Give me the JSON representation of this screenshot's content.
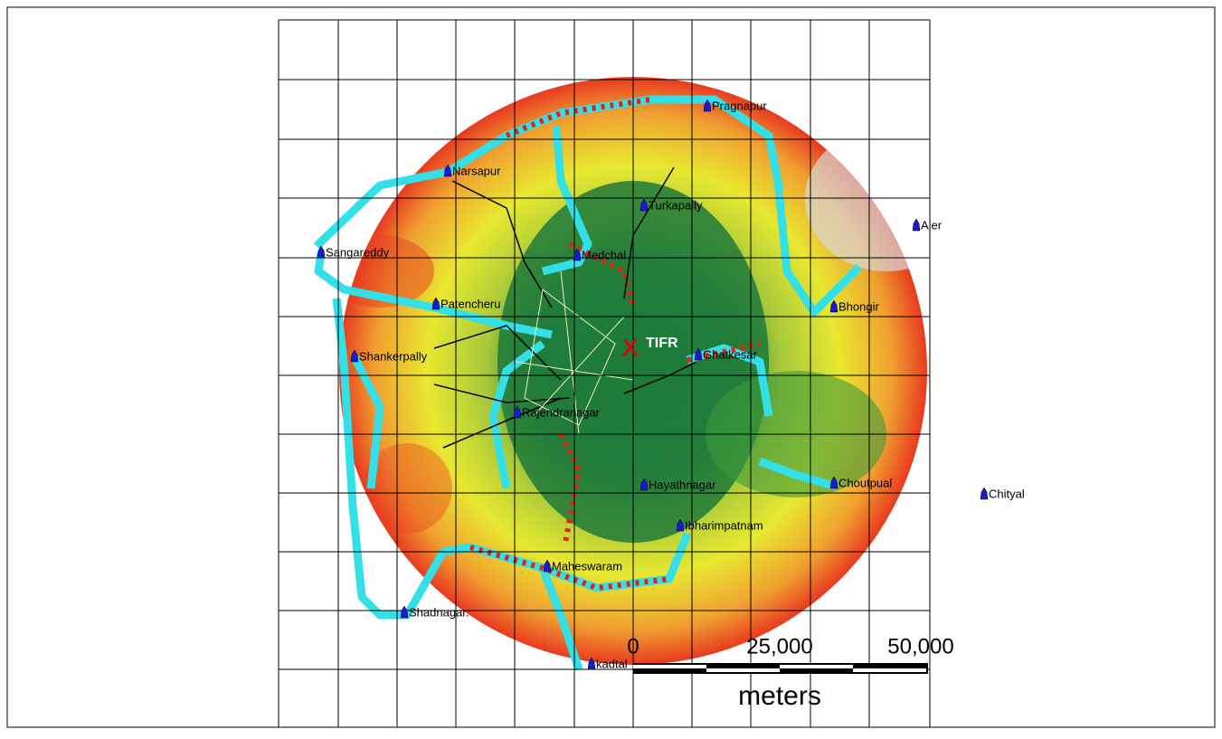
{
  "map": {
    "marker": {
      "symbol": "X",
      "label": "TIFR"
    },
    "places": [
      "Pragnapur",
      "Narsapur",
      "Turkapally",
      "Aler",
      "Sangareddy",
      "Medchal",
      "Patencheru",
      "Bhongir",
      "Shankerpally",
      "Ghatkesar",
      "Rajendranagar",
      "Hayathnagar",
      "Choutpual",
      "Chityal",
      "Ibharimpatnam",
      "Maheswaram",
      "Shadnagar.",
      "kadtal"
    ],
    "scale_bar": {
      "labels": [
        "0",
        "25,000",
        "50,000"
      ],
      "unit": "meters"
    }
  }
}
